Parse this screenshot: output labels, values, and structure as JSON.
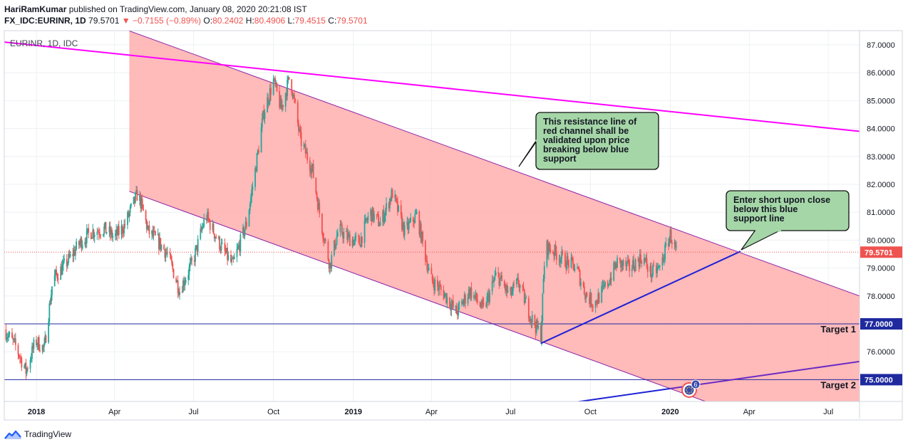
{
  "header": {
    "author": "HariRamKumar",
    "published_text": "published on TradingView.com, January 08, 2020 20:21:08 IST",
    "symbol_line": "FX_IDC:EURINR, 1D",
    "last": "79.5701",
    "change": "▼ −0.7155 (−0.89%)",
    "o_label": "O:",
    "o": "80.2402",
    "h_label": "H:",
    "h": "80.4906",
    "l_label": "L:",
    "l": "79.4515",
    "c_label": "C:",
    "c": "79.5701"
  },
  "legend_label": "EURINR, 1D, IDC",
  "footer": {
    "brand": "TradingView"
  },
  "colors": {
    "up": "#26a69a",
    "down": "#ef5350",
    "channel_fill": "#ffb3b3",
    "channel_line": "#8e24aa",
    "magenta": "#ff00ff",
    "blue": "#1e22d6",
    "target": "#1f2a9f",
    "callout_bg": "#a5d6a7",
    "price_badge": "#ef5350",
    "target_badge": "#1f2a9f"
  },
  "chart_data": {
    "type": "candlestick",
    "symbol": "EURINR",
    "interval": "1D",
    "y_axis_ticks": [
      "87.0000",
      "86.0000",
      "85.0000",
      "84.0000",
      "83.0000",
      "82.0000",
      "81.0000",
      "80.0000",
      "79.0000",
      "78.0000",
      "77.0000",
      "76.0000",
      "75.0000"
    ],
    "ylim": [
      74.2,
      87.5
    ],
    "x_axis_labels": [
      {
        "date": "2018-01-01",
        "label": "2018"
      },
      {
        "date": "2018-04-01",
        "label": "Apr"
      },
      {
        "date": "2018-07-01",
        "label": "Jul"
      },
      {
        "date": "2018-10-01",
        "label": "Oct"
      },
      {
        "date": "2019-01-01",
        "label": "2019"
      },
      {
        "date": "2019-04-01",
        "label": "Apr"
      },
      {
        "date": "2019-07-01",
        "label": "Jul"
      },
      {
        "date": "2019-10-01",
        "label": "Oct"
      },
      {
        "date": "2020-01-01",
        "label": "2020"
      },
      {
        "date": "2020-04-01",
        "label": "Apr"
      },
      {
        "date": "2020-07-01",
        "label": "Jul"
      }
    ],
    "xlim": [
      "2017-11-25",
      "2020-08-06"
    ],
    "price_path": [
      [
        "2017-11-25",
        76.8
      ],
      [
        "2017-12-08",
        76.2
      ],
      [
        "2017-12-20",
        75.3
      ],
      [
        "2017-12-31",
        76.4
      ],
      [
        "2018-01-10",
        76.1
      ],
      [
        "2018-01-20",
        78.6
      ],
      [
        "2018-02-05",
        79.2
      ],
      [
        "2018-02-20",
        79.9
      ],
      [
        "2018-03-05",
        80.3
      ],
      [
        "2018-03-20",
        80.4
      ],
      [
        "2018-04-01",
        80.1
      ],
      [
        "2018-04-12",
        80.5
      ],
      [
        "2018-04-28",
        81.7
      ],
      [
        "2018-05-10",
        80.3
      ],
      [
        "2018-05-20",
        80.0
      ],
      [
        "2018-06-01",
        79.5
      ],
      [
        "2018-06-15",
        78.2
      ],
      [
        "2018-07-01",
        79.3
      ],
      [
        "2018-07-15",
        80.9
      ],
      [
        "2018-08-01",
        79.8
      ],
      [
        "2018-08-15",
        79.1
      ],
      [
        "2018-08-31",
        80.6
      ],
      [
        "2018-09-10",
        82.5
      ],
      [
        "2018-09-20",
        84.6
      ],
      [
        "2018-10-01",
        85.7
      ],
      [
        "2018-10-10",
        84.7
      ],
      [
        "2018-10-20",
        85.9
      ],
      [
        "2018-11-01",
        83.6
      ],
      [
        "2018-11-15",
        82.5
      ],
      [
        "2018-11-25",
        80.6
      ],
      [
        "2018-12-05",
        79.1
      ],
      [
        "2018-12-15",
        80.4
      ],
      [
        "2018-12-25",
        80.1
      ],
      [
        "2019-01-08",
        79.9
      ],
      [
        "2019-01-20",
        81.0
      ],
      [
        "2019-02-01",
        80.6
      ],
      [
        "2019-02-15",
        81.7
      ],
      [
        "2019-03-01",
        80.3
      ],
      [
        "2019-03-15",
        80.9
      ],
      [
        "2019-03-31",
        78.6
      ],
      [
        "2019-04-15",
        78.1
      ],
      [
        "2019-04-30",
        77.4
      ],
      [
        "2019-05-15",
        78.2
      ],
      [
        "2019-05-31",
        77.5
      ],
      [
        "2019-06-15",
        78.8
      ],
      [
        "2019-06-30",
        78.0
      ],
      [
        "2019-07-10",
        78.5
      ],
      [
        "2019-07-25",
        77.2
      ],
      [
        "2019-08-05",
        76.6
      ],
      [
        "2019-08-10",
        79.8
      ],
      [
        "2019-08-20",
        79.6
      ],
      [
        "2019-08-31",
        79.3
      ],
      [
        "2019-09-15",
        79.0
      ],
      [
        "2019-09-25",
        78.1
      ],
      [
        "2019-10-05",
        77.7
      ],
      [
        "2019-10-20",
        78.4
      ],
      [
        "2019-11-01",
        79.2
      ],
      [
        "2019-11-15",
        79.0
      ],
      [
        "2019-11-30",
        79.4
      ],
      [
        "2019-12-10",
        78.8
      ],
      [
        "2019-12-20",
        79.0
      ],
      [
        "2020-01-01",
        80.2
      ],
      [
        "2020-01-08",
        79.57
      ]
    ],
    "last_price": "79.5701",
    "lines": [
      {
        "name": "magenta long-term resistance",
        "from": [
          "2017-11-25",
          87.1
        ],
        "to": [
          "2020-08-06",
          83.9
        ]
      },
      {
        "name": "channel upper",
        "from": [
          "2018-04-18",
          87.5
        ],
        "to": [
          "2020-08-06",
          78.0
        ]
      },
      {
        "name": "channel lower",
        "from": [
          "2018-04-18",
          81.75
        ],
        "to": [
          "2020-01-08",
          74.6
        ]
      },
      {
        "name": "blue support",
        "from": [
          "2019-08-05",
          76.3
        ],
        "to": [
          "2020-03-22",
          79.6
        ]
      },
      {
        "name": "blue lower",
        "from": [
          "2019-09-15",
          74.2
        ],
        "to": [
          "2020-08-06",
          75.65
        ]
      },
      {
        "name": "Target 1",
        "price": 77.0
      },
      {
        "name": "Target 2",
        "price": 75.0
      }
    ],
    "annotations": [
      {
        "text": "This resistance line of red channel shall be validated upon price breaking below blue support"
      },
      {
        "text": "Enter short upon close below this blue support line"
      },
      {
        "text": "Target 1",
        "price_label": "77.0000"
      },
      {
        "text": "Target 2",
        "price_label": "75.0000"
      }
    ],
    "event_badge_count": "6"
  }
}
